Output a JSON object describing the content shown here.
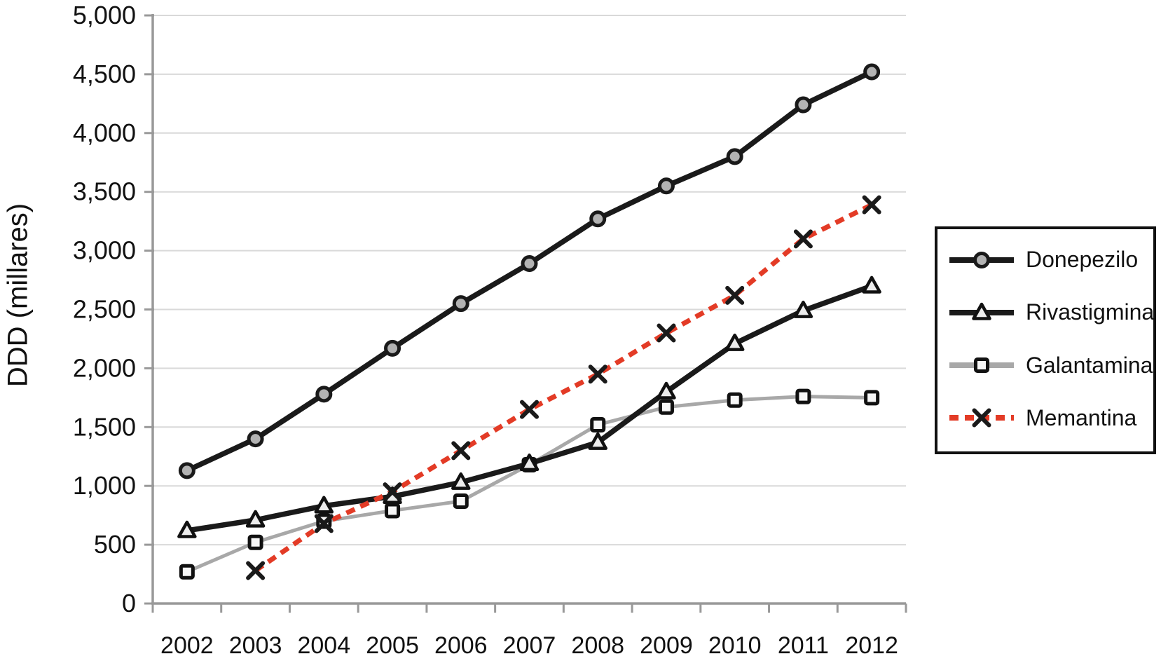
{
  "chart_data": {
    "type": "line",
    "title": "",
    "xlabel": "",
    "ylabel": "DDD (millares)",
    "categories": [
      "2002",
      "2003",
      "2004",
      "2005",
      "2006",
      "2007",
      "2008",
      "2009",
      "2010",
      "2011",
      "2012"
    ],
    "ylim": [
      0,
      5000
    ],
    "ytick_step": 500,
    "yticks": [
      {
        "value": 0,
        "label": "0"
      },
      {
        "value": 500,
        "label": "500"
      },
      {
        "value": 1000,
        "label": "1,000"
      },
      {
        "value": 1500,
        "label": "1,500"
      },
      {
        "value": 2000,
        "label": "2,000"
      },
      {
        "value": 2500,
        "label": "2,500"
      },
      {
        "value": 3000,
        "label": "3,000"
      },
      {
        "value": 3500,
        "label": "3,500"
      },
      {
        "value": 4000,
        "label": "4,000"
      },
      {
        "value": 4500,
        "label": "4,500"
      },
      {
        "value": 5000,
        "label": "5,000"
      }
    ],
    "grid": "horizontal",
    "legend_position": "right",
    "series": [
      {
        "id": "donepezilo",
        "name": "Donepezilo",
        "marker": "circle",
        "line_color": "#1a1a1a",
        "line_width": 7.5,
        "dash": "",
        "marker_fill": "#b3b3b3",
        "marker_stroke": "#1a1a1a",
        "values": [
          1130,
          1400,
          1780,
          2170,
          2550,
          2890,
          3270,
          3550,
          3800,
          4240,
          4520
        ]
      },
      {
        "id": "rivastigmina",
        "name": "Rivastigmina",
        "marker": "triangle",
        "line_color": "#1a1a1a",
        "line_width": 7.5,
        "dash": "",
        "marker_fill": "#ececec",
        "marker_stroke": "#111111",
        "values": [
          620,
          710,
          830,
          910,
          1030,
          1190,
          1370,
          1800,
          2210,
          2490,
          2700
        ]
      },
      {
        "id": "galantamina",
        "name": "Galantamina",
        "marker": "square",
        "line_color": "#a8a8a8",
        "line_width": 5,
        "dash": "",
        "marker_fill": "#f7f7f7",
        "marker_stroke": "#111111",
        "values": [
          270,
          520,
          700,
          790,
          870,
          1180,
          1520,
          1670,
          1730,
          1760,
          1750
        ]
      },
      {
        "id": "memantina",
        "name": "Memantina",
        "marker": "x",
        "line_color": "#e33b26",
        "line_width": 7,
        "dash": "13 9",
        "marker_fill": "none",
        "marker_stroke": "#1a1a1a",
        "values": [
          null,
          280,
          680,
          950,
          1300,
          1650,
          1950,
          2300,
          2620,
          3100,
          3390
        ]
      }
    ],
    "colors": {
      "grid": "#d9d9d9",
      "axis": "#999999",
      "text": "#111111",
      "background": "#ffffff"
    }
  }
}
